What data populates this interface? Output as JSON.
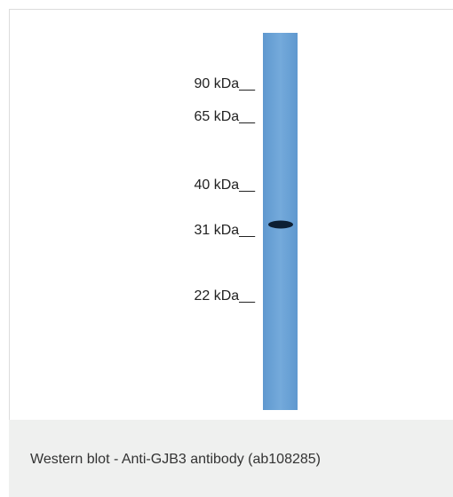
{
  "blot": {
    "markers": [
      "90 kDa__",
      "65 kDa__",
      "40 kDa__",
      "31 kDa__",
      "22 kDa__"
    ]
  },
  "caption": "Western blot - Anti-GJB3 antibody (ab108285)"
}
